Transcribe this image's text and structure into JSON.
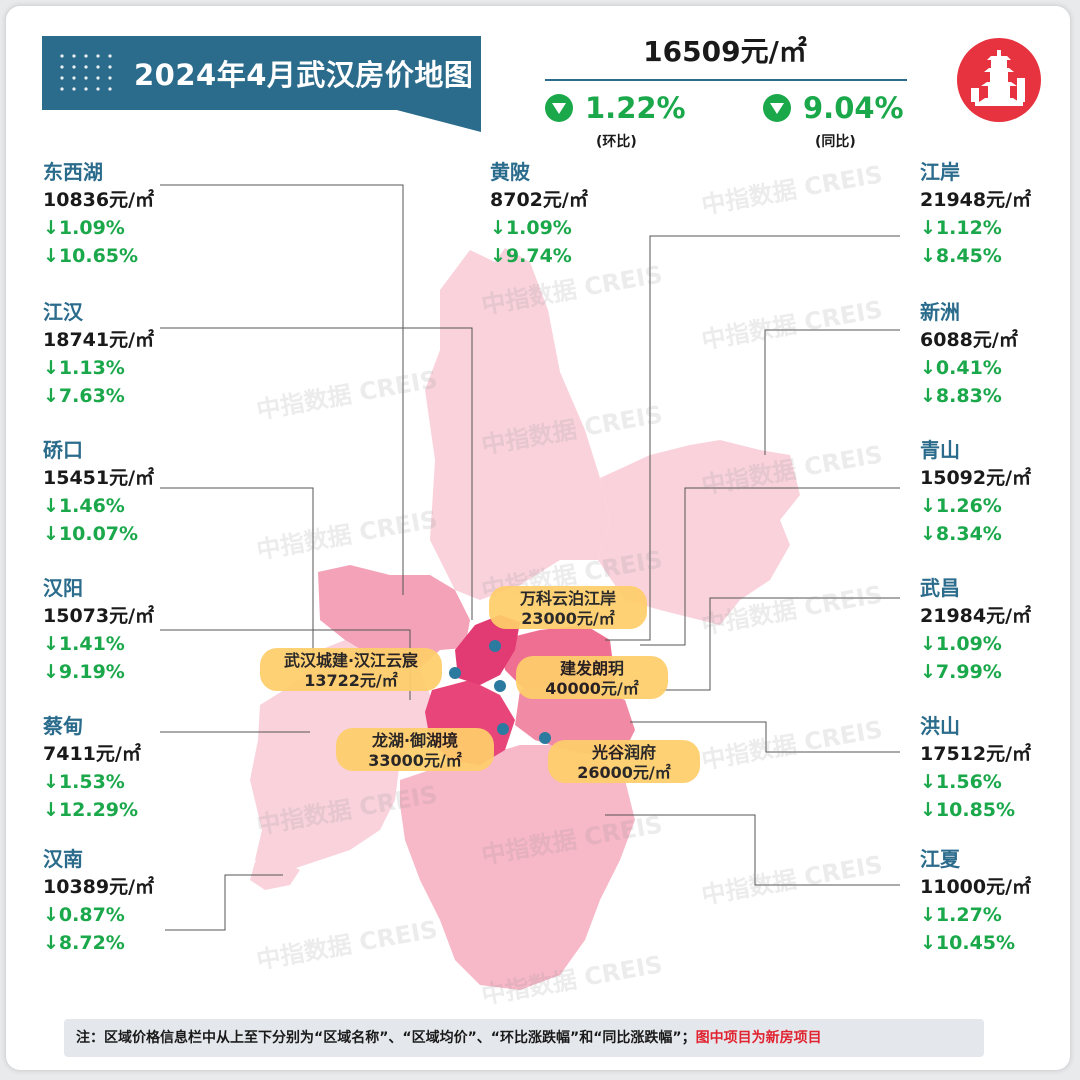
{
  "title": "2024年4月武汉房价地图",
  "average_price": "16509元/㎡",
  "mom": {
    "value": "1.22%",
    "label": "(环比)"
  },
  "yoy": {
    "value": "9.04%",
    "label": "(同比)"
  },
  "left_districts": [
    {
      "name": "东西湖",
      "price": "10836元/㎡",
      "mom": "↓1.09%",
      "yoy": "↓10.65%"
    },
    {
      "name": "江汉",
      "price": "18741元/㎡",
      "mom": "↓1.13%",
      "yoy": "↓7.63%"
    },
    {
      "name": "硚口",
      "price": "15451元/㎡",
      "mom": "↓1.46%",
      "yoy": "↓10.07%"
    },
    {
      "name": "汉阳",
      "price": "15073元/㎡",
      "mom": "↓1.41%",
      "yoy": "↓9.19%"
    },
    {
      "name": "蔡甸",
      "price": "7411元/㎡",
      "mom": "↓1.53%",
      "yoy": "↓12.29%"
    },
    {
      "name": "汉南",
      "price": "10389元/㎡",
      "mom": "↓0.87%",
      "yoy": "↓8.72%"
    }
  ],
  "center_district": {
    "name": "黄陂",
    "price": "8702元/㎡",
    "mom": "↓1.09%",
    "yoy": "↓9.74%"
  },
  "right_districts": [
    {
      "name": "江岸",
      "price": "21948元/㎡",
      "mom": "↓1.12%",
      "yoy": "↓8.45%"
    },
    {
      "name": "新洲",
      "price": "6088元/㎡",
      "mom": "↓0.41%",
      "yoy": "↓8.83%"
    },
    {
      "name": "青山",
      "price": "15092元/㎡",
      "mom": "↓1.26%",
      "yoy": "↓8.34%"
    },
    {
      "name": "武昌",
      "price": "21984元/㎡",
      "mom": "↓1.09%",
      "yoy": "↓7.99%"
    },
    {
      "name": "洪山",
      "price": "17512元/㎡",
      "mom": "↓1.56%",
      "yoy": "↓10.85%"
    },
    {
      "name": "江夏",
      "price": "11000元/㎡",
      "mom": "↓1.27%",
      "yoy": "↓10.45%"
    }
  ],
  "projects": [
    {
      "name": "万科云泊江岸",
      "price": "23000元/㎡"
    },
    {
      "name": "武汉城建·汉江云宸",
      "price": "13722元/㎡"
    },
    {
      "name": "建发朗玥",
      "price": "40000元/㎡"
    },
    {
      "name": "龙湖·御湖境",
      "price": "33000元/㎡"
    },
    {
      "name": "光谷润府",
      "price": "26000元/㎡"
    }
  ],
  "note": {
    "text": "注：区域价格信息栏中从上至下分别为“区域名称”、“区域均价”、“环比涨跌幅”和“同比涨跌幅”；",
    "highlight": "图中项目为新房项目"
  },
  "watermark": "中指数据 CREIS",
  "colors": {
    "banner": "#2b6c8c",
    "down": "#1aa84b",
    "label_bg": "#ffce6b",
    "highlight": "#e0232f"
  }
}
